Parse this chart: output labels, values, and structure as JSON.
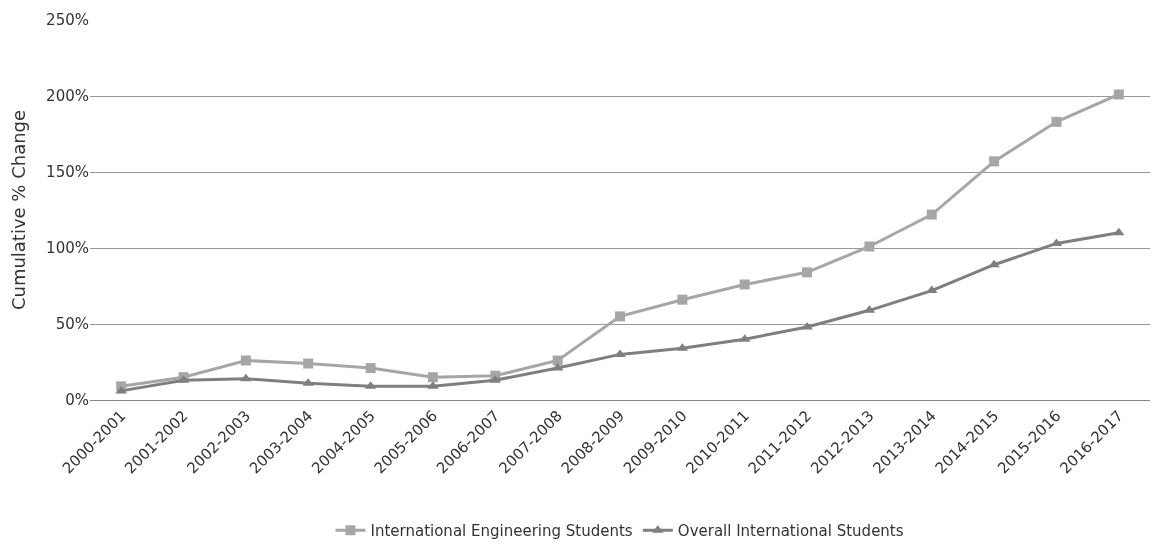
{
  "chart_data": {
    "type": "line",
    "ylabel": "Cumulative % Change",
    "categories": [
      "2000-2001",
      "2001-2002",
      "2002-2003",
      "2003-2004",
      "2004-2005",
      "2005-2006",
      "2006-2007",
      "2007-2008",
      "2008-2009",
      "2009-2010",
      "2010-2011",
      "2011-2012",
      "2012-2013",
      "2013-2014",
      "2014-2015",
      "2015-2016",
      "2016-2017"
    ],
    "series": [
      {
        "name": "International Engineering Students",
        "color": "#a6a6a6",
        "marker": "square",
        "values": [
          9,
          15,
          26,
          24,
          21,
          15,
          16,
          26,
          55,
          66,
          76,
          84,
          101,
          122,
          157,
          183,
          201
        ]
      },
      {
        "name": "Overall International Students",
        "color": "#7f7f7f",
        "marker": "triangle",
        "values": [
          6,
          13,
          14,
          11,
          9,
          9,
          13,
          21,
          30,
          34,
          40,
          48,
          59,
          72,
          89,
          103,
          110
        ]
      }
    ],
    "ylim": [
      0,
      250
    ],
    "yticks": [
      {
        "value": 0,
        "label": "0%"
      },
      {
        "value": 50,
        "label": "50%"
      },
      {
        "value": 100,
        "label": "100%"
      },
      {
        "value": 150,
        "label": "150%"
      },
      {
        "value": 200,
        "label": "200%"
      },
      {
        "value": 250,
        "label": "250%"
      }
    ],
    "grid": "y",
    "legend": "bottom"
  }
}
